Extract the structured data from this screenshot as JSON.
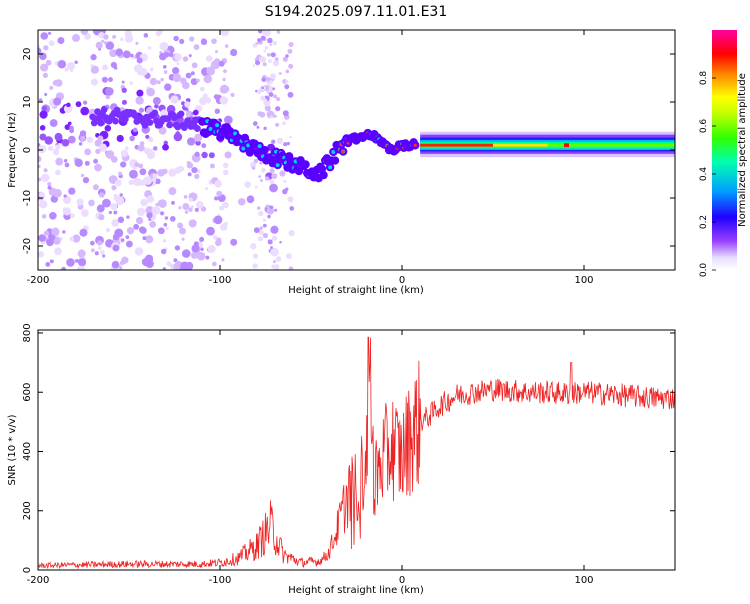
{
  "title": "S194.2025.097.11.01.E31",
  "colors": {
    "line": "#ee2222",
    "colorbar_stops": [
      "#e8e0ff",
      "#7a00ff",
      "#0000ff",
      "#00c0ff",
      "#00ff88",
      "#60ff00",
      "#ffff00",
      "#ff8000",
      "#ff0000",
      "#ff00a0"
    ]
  },
  "chart_data": [
    {
      "type": "heatmap",
      "title": "S194.2025.097.11.01.E31",
      "xlabel": "Height of straight line (km)",
      "ylabel": "Frequency (Hz)",
      "xlim": [
        -200,
        150
      ],
      "ylim": [
        -25,
        25
      ],
      "x_ticks": [
        "-200",
        "-100",
        "0",
        "100"
      ],
      "y_ticks": [
        "20",
        "10",
        "0",
        "-10",
        "-20"
      ],
      "colorbar": {
        "label": "Normalized spectral amplitude",
        "range": [
          0,
          1
        ],
        "ticks": [
          "0.0",
          "0.2",
          "0.4",
          "0.6",
          "0.8"
        ]
      },
      "ridge": {
        "description_points_x": [
          -160,
          -120,
          -100,
          -80,
          -60,
          -45,
          -35,
          -28,
          -20,
          -15,
          -10,
          -5,
          0,
          5,
          10,
          50,
          100,
          150
        ],
        "description_points_y": [
          7,
          6,
          4,
          0,
          -3,
          -5,
          0,
          2,
          3,
          3,
          1,
          0,
          1,
          1,
          1,
          1,
          1,
          1
        ]
      }
    },
    {
      "type": "line",
      "xlabel": "Height of straight line (km)",
      "ylabel": "SNR (10 * v/v)",
      "xlim": [
        -200,
        150
      ],
      "ylim": [
        0,
        810
      ],
      "x_ticks": [
        "-200",
        "-100",
        "0",
        "100"
      ],
      "y_ticks": [
        "800",
        "600",
        "400",
        "200",
        "0"
      ],
      "series": [
        {
          "envelope_x": [
            -200,
            -150,
            -110,
            -100,
            -90,
            -80,
            -72,
            -65,
            -55,
            -45,
            -40,
            -35,
            -30,
            -25,
            -20,
            -18,
            -15,
            -10,
            -5,
            0,
            5,
            10,
            15,
            20,
            30,
            40,
            50,
            60,
            70,
            80,
            90,
            100,
            110,
            120,
            130,
            140,
            150
          ],
          "envelope_y": [
            15,
            20,
            20,
            25,
            40,
            80,
            150,
            50,
            25,
            30,
            60,
            150,
            250,
            280,
            350,
            500,
            300,
            380,
            420,
            380,
            460,
            500,
            520,
            550,
            590,
            600,
            610,
            605,
            600,
            600,
            595,
            600,
            595,
            590,
            585,
            580,
            580
          ]
        }
      ]
    }
  ]
}
